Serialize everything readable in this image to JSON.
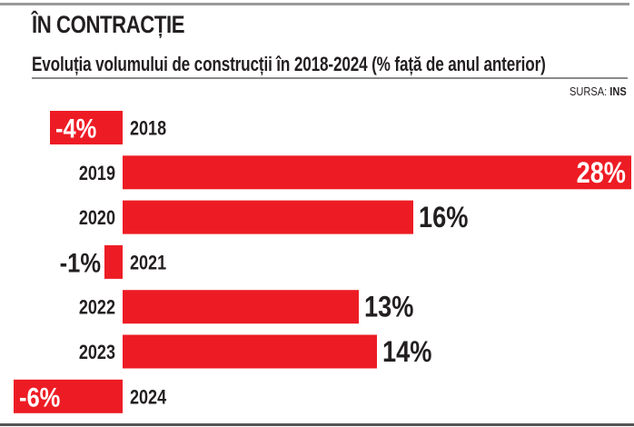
{
  "header": {
    "title": "ÎN CONTRACȚIE",
    "subtitle": "Evoluția volumului de construcții în 2018-2024 (% față de anul anterior)",
    "source_label": "SURSA: ",
    "source_name": "INS"
  },
  "colors": {
    "bar": "#ed1c24",
    "text": "#231f20",
    "label_on_bar": "#ffffff"
  },
  "chart_data": {
    "type": "bar",
    "orientation": "horizontal",
    "title": "ÎN CONTRACȚIE",
    "subtitle": "Evoluția volumului de construcții în 2018-2024 (% față de anul anterior)",
    "xlabel": "",
    "ylabel": "",
    "source": "SURSA: INS",
    "categories": [
      "2018",
      "2019",
      "2020",
      "2021",
      "2022",
      "2023",
      "2024"
    ],
    "values": [
      -4,
      28,
      16,
      -1,
      13,
      14,
      -6
    ],
    "data_labels": [
      "-4%",
      "28%",
      "16%",
      "-1%",
      "13%",
      "14%",
      "-6%"
    ],
    "unit": "%",
    "xlim": [
      -6.5,
      28
    ],
    "grid": false,
    "legend": "none"
  }
}
